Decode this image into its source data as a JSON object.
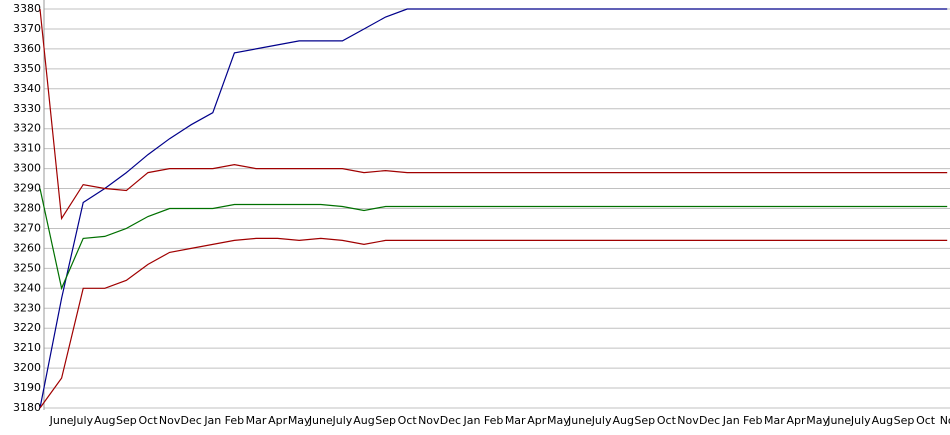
{
  "chart_data": {
    "type": "line",
    "categories": [
      null,
      "June",
      "July",
      "Aug",
      "Sep",
      "Oct",
      "Nov",
      "Dec",
      "Jan",
      "Feb",
      "Mar",
      "Apr",
      "May",
      "June",
      "July",
      "Aug",
      "Sep",
      "Oct",
      "Nov",
      "Dec",
      "Jan",
      "Feb",
      "Mar",
      "Apr",
      "May",
      "June",
      "July",
      "Aug",
      "Sep",
      "Oct",
      "Nov",
      "Dec",
      "Jan",
      "Feb",
      "Mar",
      "Apr",
      "May",
      "June",
      "July",
      "Aug",
      "Sep",
      "Oct",
      "No"
    ],
    "series": [
      {
        "color": "#00008b",
        "values": [
          3180,
          3235,
          3283,
          3290,
          3298,
          3307,
          3315,
          3322,
          3328,
          3358,
          3360,
          3362,
          3364,
          3364,
          3364,
          3370,
          3376,
          3380,
          3380,
          3380,
          3380,
          3380,
          3380,
          3380,
          3380,
          3380,
          3380,
          3380,
          3380,
          3380,
          3380,
          3380,
          3380,
          3380,
          3380,
          3380,
          3380,
          3380,
          3380,
          3380,
          3380,
          3380,
          3380
        ]
      },
      {
        "color": "#a00000",
        "values": [
          3380,
          3275,
          3292,
          3290,
          3289,
          3298,
          3300,
          3300,
          3300,
          3302,
          3300,
          3300,
          3300,
          3300,
          3300,
          3298,
          3299,
          3298,
          3298,
          3298,
          3298,
          3298,
          3298,
          3298,
          3298,
          3298,
          3298,
          3298,
          3298,
          3298,
          3298,
          3298,
          3298,
          3298,
          3298,
          3298,
          3298,
          3298,
          3298,
          3298,
          3298,
          3298,
          3298
        ]
      },
      {
        "color": "#007000",
        "values": [
          3290,
          3240,
          3265,
          3266,
          3270,
          3276,
          3280,
          3280,
          3280,
          3282,
          3282,
          3282,
          3282,
          3282,
          3281,
          3279,
          3281,
          3281,
          3281,
          3281,
          3281,
          3281,
          3281,
          3281,
          3281,
          3281,
          3281,
          3281,
          3281,
          3281,
          3281,
          3281,
          3281,
          3281,
          3281,
          3281,
          3281,
          3281,
          3281,
          3281,
          3281,
          3281,
          3281
        ]
      },
      {
        "color": "#a00000",
        "values": [
          3180,
          3195,
          3240,
          3240,
          3244,
          3252,
          3258,
          3260,
          3262,
          3264,
          3265,
          3265,
          3264,
          3265,
          3264,
          3262,
          3264,
          3264,
          3264,
          3264,
          3264,
          3264,
          3264,
          3264,
          3264,
          3264,
          3264,
          3264,
          3264,
          3264,
          3264,
          3264,
          3264,
          3264,
          3264,
          3264,
          3264,
          3264,
          3264,
          3264,
          3264,
          3264,
          3264
        ]
      }
    ],
    "ylim": [
      3180,
      3380
    ],
    "yticks": [
      3180,
      3190,
      3200,
      3210,
      3220,
      3230,
      3240,
      3250,
      3260,
      3270,
      3280,
      3290,
      3300,
      3310,
      3320,
      3330,
      3340,
      3350,
      3360,
      3370,
      3380
    ],
    "grid": true
  }
}
